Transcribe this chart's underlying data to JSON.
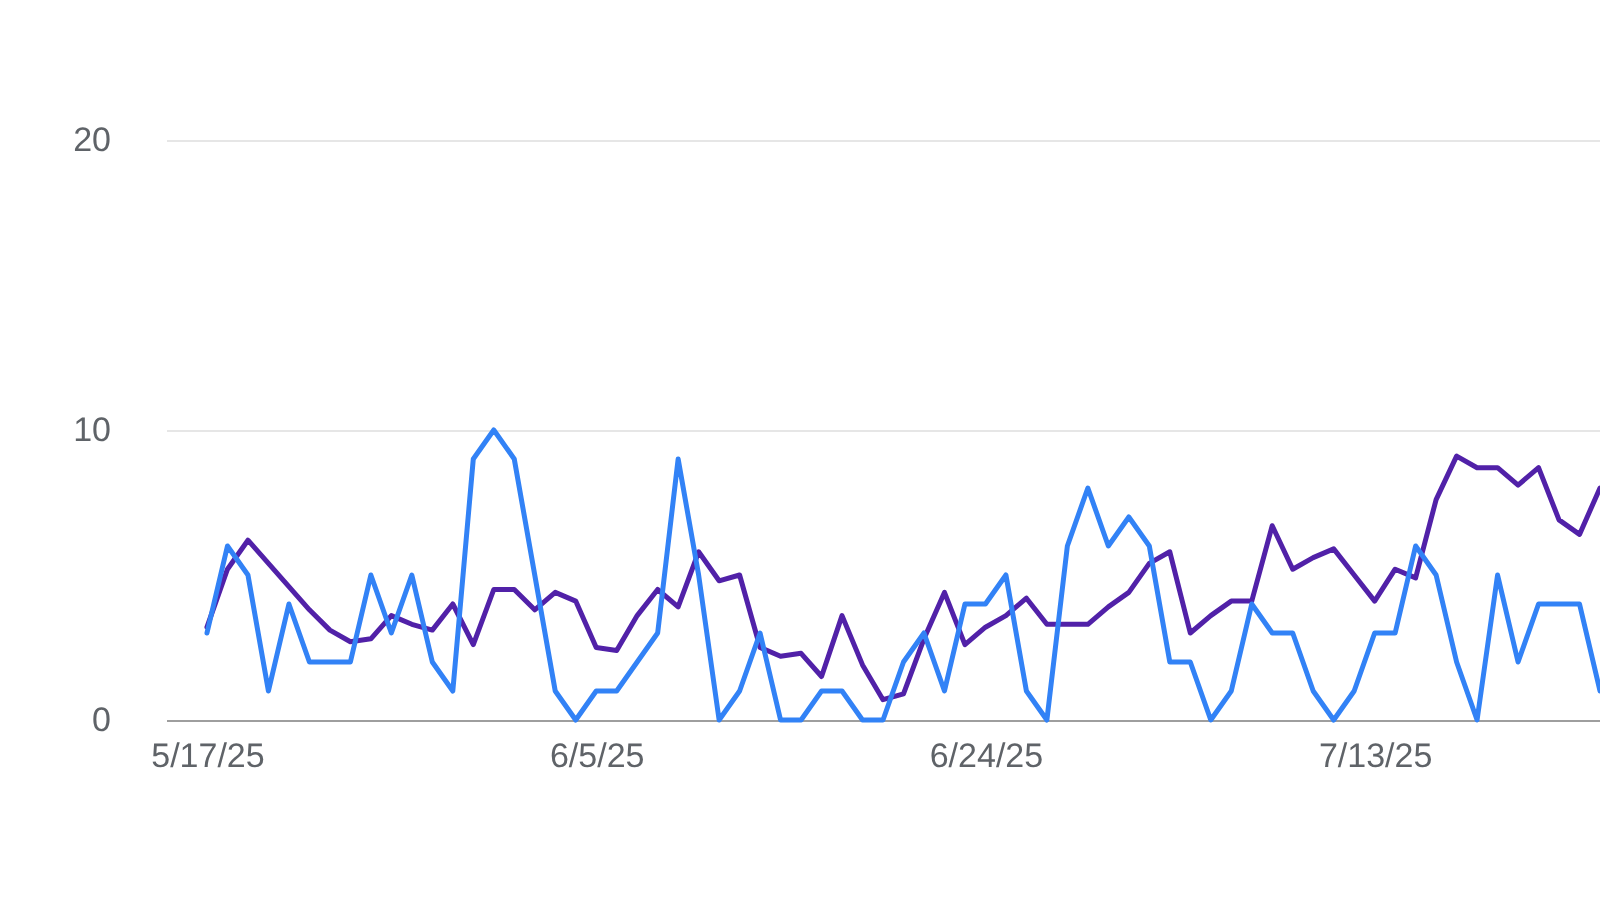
{
  "chart_data": {
    "type": "line",
    "x": [
      "2025-05-17",
      "2025-05-18",
      "2025-05-19",
      "2025-05-20",
      "2025-05-21",
      "2025-05-22",
      "2025-05-23",
      "2025-05-24",
      "2025-05-25",
      "2025-05-26",
      "2025-05-27",
      "2025-05-28",
      "2025-05-29",
      "2025-05-30",
      "2025-05-31",
      "2025-06-01",
      "2025-06-02",
      "2025-06-03",
      "2025-06-04",
      "2025-06-05",
      "2025-06-06",
      "2025-06-07",
      "2025-06-08",
      "2025-06-09",
      "2025-06-10",
      "2025-06-11",
      "2025-06-12",
      "2025-06-13",
      "2025-06-14",
      "2025-06-15",
      "2025-06-16",
      "2025-06-17",
      "2025-06-18",
      "2025-06-19",
      "2025-06-20",
      "2025-06-21",
      "2025-06-22",
      "2025-06-23",
      "2025-06-24",
      "2025-06-25",
      "2025-06-26",
      "2025-06-27",
      "2025-06-28",
      "2025-06-29",
      "2025-06-30",
      "2025-07-01",
      "2025-07-02",
      "2025-07-03",
      "2025-07-04",
      "2025-07-05",
      "2025-07-06",
      "2025-07-07",
      "2025-07-08",
      "2025-07-09",
      "2025-07-10",
      "2025-07-11",
      "2025-07-12",
      "2025-07-13",
      "2025-07-14",
      "2025-07-15",
      "2025-07-16",
      "2025-07-17",
      "2025-07-18",
      "2025-07-19",
      "2025-07-20",
      "2025-07-21",
      "2025-07-22",
      "2025-07-23",
      "2025-07-24"
    ],
    "series": [
      {
        "color": "#5121a8",
        "values": [
          3.2,
          5.2,
          6.2,
          5.4,
          4.6,
          3.8,
          3.1,
          2.7,
          2.8,
          3.6,
          3.3,
          3.1,
          4.0,
          2.6,
          4.5,
          4.5,
          3.8,
          4.4,
          4.1,
          2.5,
          2.4,
          3.6,
          4.5,
          3.9,
          5.8,
          4.8,
          5.0,
          2.5,
          2.2,
          2.3,
          1.5,
          3.6,
          1.9,
          0.7,
          0.9,
          2.8,
          4.4,
          2.6,
          3.2,
          3.6,
          4.2,
          3.3,
          3.3,
          3.3,
          3.9,
          4.4,
          5.4,
          5.8,
          3.0,
          3.6,
          4.1,
          4.1,
          6.7,
          5.2,
          5.6,
          5.9,
          5.0,
          4.1,
          5.2,
          4.9,
          7.6,
          9.1,
          8.7,
          8.7,
          8.1,
          8.7,
          6.9,
          6.4,
          8.0
        ]
      },
      {
        "color": "#3282f6",
        "values": [
          3,
          6,
          5,
          1,
          4,
          2,
          2,
          2,
          5,
          3,
          5,
          2,
          1,
          9,
          10,
          9,
          5,
          1,
          0,
          1,
          1,
          2,
          3,
          9,
          5,
          0,
          1,
          3,
          0,
          0,
          1,
          1,
          0,
          0,
          2,
          3,
          1,
          4,
          4,
          5,
          1,
          0,
          6,
          8,
          6,
          7,
          6,
          2,
          2,
          0,
          1,
          4,
          3,
          3,
          1,
          0,
          1,
          3,
          3,
          6,
          5,
          2,
          0,
          5,
          2,
          4,
          4,
          4,
          1
        ]
      }
    ],
    "xlim": [
      "2025-05-15",
      "2025-07-24"
    ],
    "xticks": [
      {
        "value": "2025-05-17",
        "label": "5/17/25"
      },
      {
        "value": "2025-06-05",
        "label": "6/5/25"
      },
      {
        "value": "2025-06-24",
        "label": "6/24/25"
      },
      {
        "value": "2025-07-13",
        "label": "7/13/25"
      }
    ],
    "ylim": [
      0,
      20
    ],
    "yticks": [
      0,
      10,
      20
    ],
    "grid": "y",
    "marker": "none",
    "line_style": "solid"
  }
}
